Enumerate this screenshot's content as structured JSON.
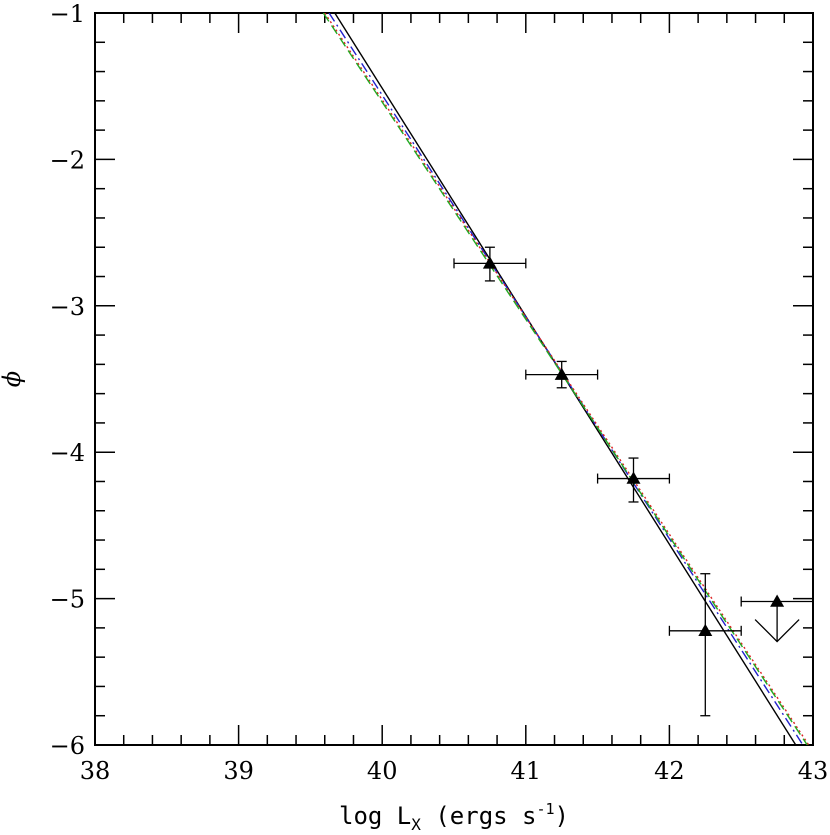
{
  "chart_data": {
    "type": "line",
    "xlim": [
      38,
      43
    ],
    "ylim": [
      -6,
      -1
    ],
    "xlabel": "log L",
    "xlabel_subscript": "X",
    "xlabel_units": " (ergs s",
    "xlabel_units_exp": "-1",
    "xlabel_close": ")",
    "ylabel": "ϕ",
    "x_ticks": [
      38,
      39,
      40,
      41,
      42,
      43
    ],
    "y_ticks": [
      -6,
      -5,
      -4,
      -3,
      -2,
      -1
    ],
    "x_tick_labels": [
      "38",
      "39",
      "40",
      "41",
      "42",
      "43"
    ],
    "y_tick_labels": [
      "−6",
      "−5",
      "−4",
      "−3",
      "−2",
      "−1"
    ],
    "grid": false,
    "points": [
      {
        "x": 40.75,
        "y": -2.71,
        "xerr": 0.25,
        "yerr_lo": 0.12,
        "yerr_hi": 0.11
      },
      {
        "x": 41.25,
        "y": -3.47,
        "xerr": 0.25,
        "yerr_lo": 0.09,
        "yerr_hi": 0.09
      },
      {
        "x": 41.75,
        "y": -4.18,
        "xerr": 0.25,
        "yerr_lo": 0.16,
        "yerr_hi": 0.14
      },
      {
        "x": 42.25,
        "y": -5.22,
        "xerr": 0.25,
        "yerr_lo": 0.58,
        "yerr_hi": 0.39
      }
    ],
    "upper_limits": [
      {
        "x": 42.75,
        "y": -5.02,
        "xerr": 0.25
      }
    ],
    "series": [
      {
        "style": "solid",
        "color": "#000000",
        "x": [
          39.67,
          42.88
        ],
        "y": [
          -1.0,
          -6.0
        ]
      },
      {
        "style": "dashdot",
        "color": "#2222cc",
        "x": [
          39.63,
          42.93
        ],
        "y": [
          -1.0,
          -6.0
        ]
      },
      {
        "style": "dotted",
        "color": "#dd2222",
        "x": [
          39.6,
          42.97
        ],
        "y": [
          -1.0,
          -6.0
        ]
      },
      {
        "style": "dashed",
        "color": "#22aa22",
        "x": [
          39.59,
          42.96
        ],
        "y": [
          -1.0,
          -6.0
        ]
      }
    ]
  }
}
